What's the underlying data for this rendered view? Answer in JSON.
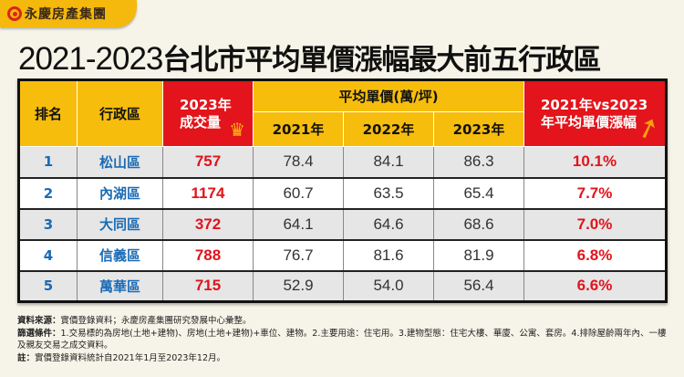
{
  "brand": "永慶房產集團",
  "title": {
    "years": "2021-2023",
    "text": "台北市平均單價漲幅最大前五行政區"
  },
  "colors": {
    "yellow": "#f6bd0c",
    "red": "#e3141b",
    "blue": "#1a6bb5"
  },
  "chart_data": {
    "type": "table",
    "headers": {
      "rank": "排名",
      "district": "行政區",
      "volume": "2023年成交量",
      "price_group": "平均單價(萬/坪)",
      "years": [
        "2021年",
        "2022年",
        "2023年"
      ],
      "change": "2021年vs2023年平均單價漲幅"
    },
    "rows": [
      {
        "rank": "1",
        "district": "松山區",
        "volume": "757",
        "p2021": "78.4",
        "p2022": "84.1",
        "p2023": "86.3",
        "change": "10.1%"
      },
      {
        "rank": "2",
        "district": "內湖區",
        "volume": "1174",
        "p2021": "60.7",
        "p2022": "63.5",
        "p2023": "65.4",
        "change": "7.7%"
      },
      {
        "rank": "3",
        "district": "大同區",
        "volume": "372",
        "p2021": "64.1",
        "p2022": "64.6",
        "p2023": "68.6",
        "change": "7.0%"
      },
      {
        "rank": "4",
        "district": "信義區",
        "volume": "788",
        "p2021": "76.7",
        "p2022": "81.6",
        "p2023": "81.9",
        "change": "6.8%"
      },
      {
        "rank": "5",
        "district": "萬華區",
        "volume": "715",
        "p2021": "52.9",
        "p2022": "54.0",
        "p2023": "56.4",
        "change": "6.6%"
      }
    ]
  },
  "notes": [
    {
      "label": "資料來源：",
      "text": "實價登錄資料；永慶房產集團研究發展中心彙整。"
    },
    {
      "label": "篩選條件：",
      "text": "1.交易標的為房地(土地+建物)、房地(土地+建物)+車位、建物。2.主要用途：住宅用。3.建物型態：住宅大樓、華廈、公寓、套房。4.排除屋齡兩年內、一樓及親友交易之成交資料。"
    },
    {
      "label": "註：",
      "text": "實價登錄資料統計自2021年1月至2023年12月。"
    }
  ]
}
